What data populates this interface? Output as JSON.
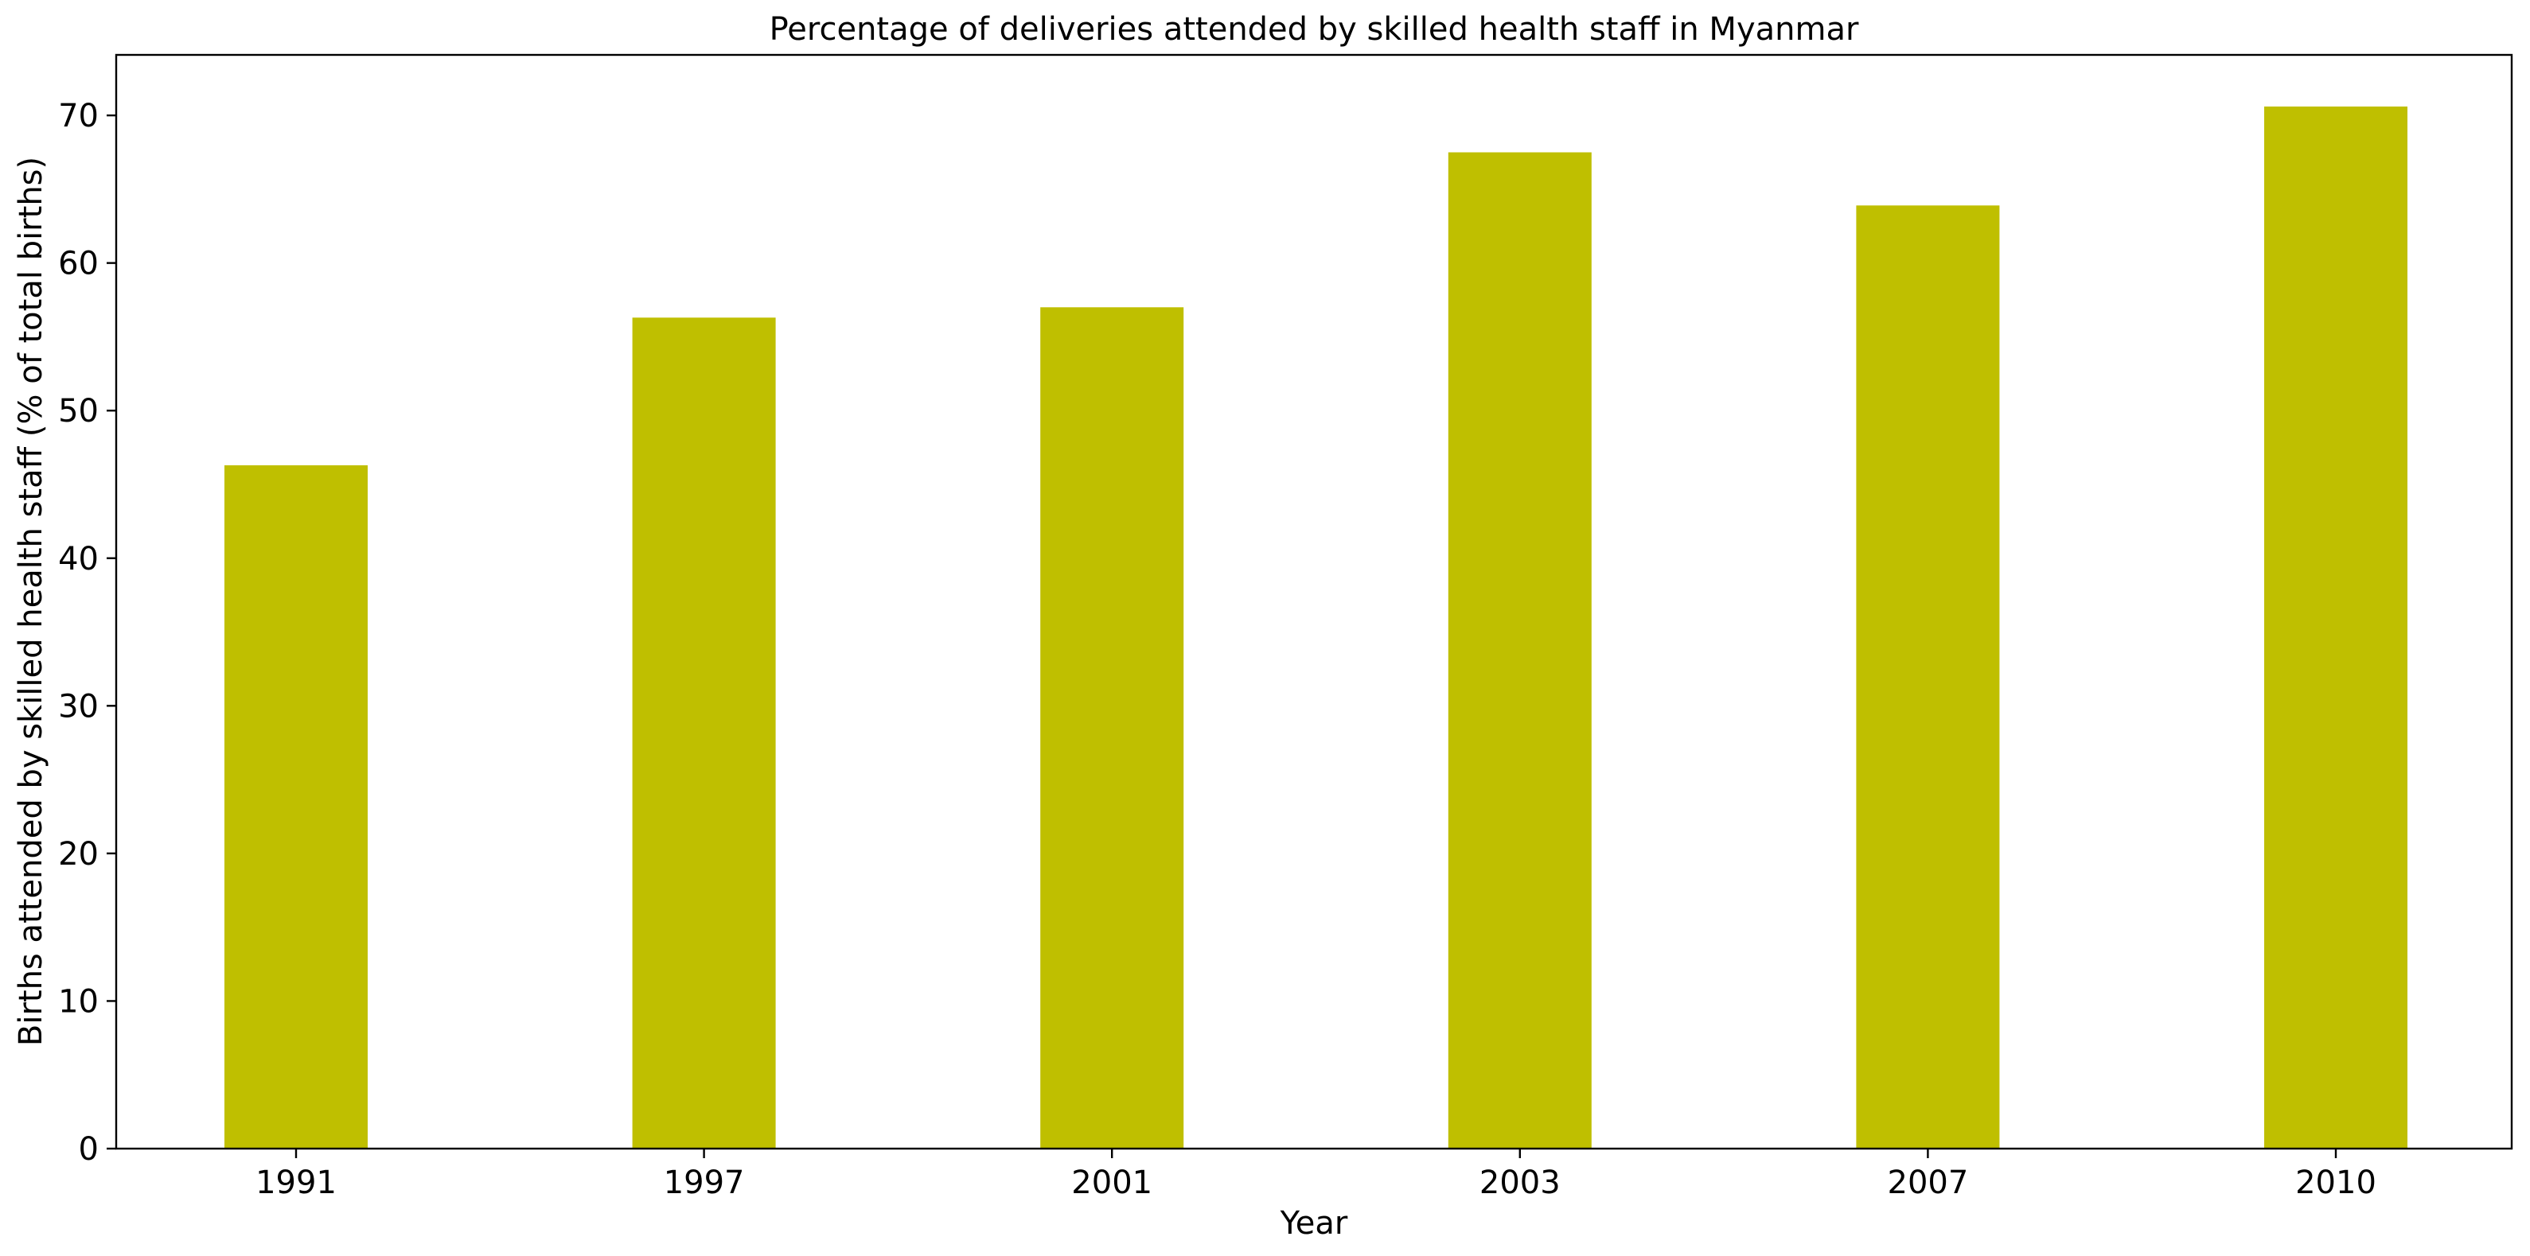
{
  "chart_data": {
    "type": "bar",
    "title": "Percentage of deliveries attended by skilled health staff in Myanmar",
    "xlabel": "Year",
    "ylabel": "Births attended by skilled health staff (% of total births)",
    "categories": [
      "1991",
      "1997",
      "2001",
      "2003",
      "2007",
      "2010"
    ],
    "values": [
      46.3,
      56.3,
      57.0,
      67.5,
      63.9,
      70.6
    ],
    "ylim": [
      0,
      74.1
    ],
    "yticks": [
      0,
      10,
      20,
      30,
      40,
      50,
      60,
      70
    ],
    "bar_color": "#bfbf00",
    "grid": false,
    "legend": "none"
  }
}
